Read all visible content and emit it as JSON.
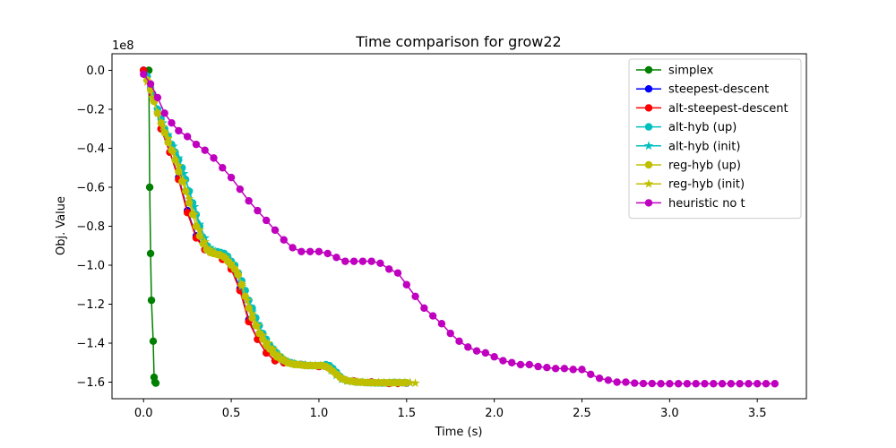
{
  "chart_data": {
    "type": "line",
    "title": "Time comparison for grow22",
    "xlabel": "Time (s)",
    "ylabel": "Obj. Value",
    "y_offset_label": "1e8",
    "y_scale": 100000000,
    "xlim": [
      -0.18,
      3.78
    ],
    "ylim": [
      -1.685,
      0.085
    ],
    "x_ticks": [
      0.0,
      0.5,
      1.0,
      1.5,
      2.0,
      2.5,
      3.0,
      3.5
    ],
    "x_tick_labels": [
      "0.0",
      "0.5",
      "1.0",
      "1.5",
      "2.0",
      "2.5",
      "3.0",
      "3.5"
    ],
    "y_ticks": [
      0.0,
      -0.2,
      -0.4,
      -0.6,
      -0.8,
      -1.0,
      -1.2,
      -1.4,
      -1.6
    ],
    "y_tick_labels": [
      "0.0",
      "−0.2",
      "−0.4",
      "−0.6",
      "−0.8",
      "−1.0",
      "−1.2",
      "−1.4",
      "−1.6"
    ],
    "legend_position": "top-right",
    "series": [
      {
        "name": "simplex",
        "color": "#008000",
        "marker": "circle",
        "x": [
          0.0,
          0.03,
          0.035,
          0.04,
          0.045,
          0.055,
          0.06,
          0.065,
          0.07
        ],
        "y": [
          0.0,
          0.0,
          -0.6,
          -0.94,
          -1.18,
          -1.39,
          -1.575,
          -1.6,
          -1.605
        ]
      },
      {
        "name": "steepest-descent",
        "color": "#0000ff",
        "marker": "circle",
        "x": [
          0.0,
          0.05,
          0.1,
          0.15,
          0.2,
          0.25,
          0.3,
          0.35,
          0.4,
          0.45,
          0.5,
          0.55,
          0.6,
          0.65,
          0.7,
          0.75,
          0.8,
          0.9,
          1.0,
          1.1,
          1.2,
          1.3,
          1.4,
          1.5
        ],
        "y": [
          0.0,
          -0.12,
          -0.3,
          -0.42,
          -0.55,
          -0.72,
          -0.85,
          -0.92,
          -0.93,
          -0.96,
          -1.01,
          -1.12,
          -1.28,
          -1.38,
          -1.45,
          -1.49,
          -1.5,
          -1.51,
          -1.515,
          -1.55,
          -1.595,
          -1.6,
          -1.605,
          -1.605
        ]
      },
      {
        "name": "alt-steepest-descent",
        "color": "#ff0000",
        "marker": "circle",
        "x": [
          0.0,
          0.05,
          0.1,
          0.15,
          0.2,
          0.25,
          0.3,
          0.35,
          0.4,
          0.45,
          0.5,
          0.55,
          0.6,
          0.65,
          0.7,
          0.75,
          0.8,
          0.9,
          1.0,
          1.1,
          1.2,
          1.3,
          1.4,
          1.45
        ],
        "y": [
          0.0,
          -0.12,
          -0.3,
          -0.42,
          -0.56,
          -0.73,
          -0.86,
          -0.92,
          -0.94,
          -0.97,
          -1.02,
          -1.13,
          -1.29,
          -1.38,
          -1.45,
          -1.49,
          -1.5,
          -1.51,
          -1.52,
          -1.56,
          -1.595,
          -1.6,
          -1.607,
          -1.607
        ]
      },
      {
        "name": "alt-hyb (up)",
        "color": "#00bfbf",
        "marker": "circle",
        "x": [
          0.02,
          0.04,
          0.06,
          0.08,
          0.1,
          0.12,
          0.14,
          0.16,
          0.18,
          0.2,
          0.22,
          0.24,
          0.26,
          0.28,
          0.3,
          0.32,
          0.34,
          0.36,
          0.38,
          0.4,
          0.42,
          0.44,
          0.46,
          0.48,
          0.5,
          0.52,
          0.54,
          0.56,
          0.58,
          0.6,
          0.62,
          0.64,
          0.66,
          0.68,
          0.7,
          0.72,
          0.74,
          0.76,
          0.78,
          0.8,
          0.82,
          0.84,
          0.86,
          0.88,
          0.9,
          0.92,
          0.94,
          0.96,
          0.98,
          1.0,
          1.02,
          1.04,
          1.06,
          1.08,
          1.1,
          1.12,
          1.14,
          1.16,
          1.18,
          1.2,
          1.22,
          1.24,
          1.26,
          1.28,
          1.3,
          1.32,
          1.34,
          1.36,
          1.38,
          1.4,
          1.42,
          1.44,
          1.46,
          1.48,
          1.5
        ],
        "y": [
          -0.03,
          -0.09,
          -0.15,
          -0.2,
          -0.25,
          -0.3,
          -0.34,
          -0.38,
          -0.42,
          -0.46,
          -0.5,
          -0.56,
          -0.62,
          -0.68,
          -0.74,
          -0.8,
          -0.86,
          -0.9,
          -0.92,
          -0.93,
          -0.93,
          -0.935,
          -0.94,
          -0.955,
          -0.98,
          -1.0,
          -1.04,
          -1.08,
          -1.13,
          -1.18,
          -1.22,
          -1.27,
          -1.31,
          -1.35,
          -1.38,
          -1.41,
          -1.43,
          -1.45,
          -1.47,
          -1.485,
          -1.495,
          -1.5,
          -1.505,
          -1.51,
          -1.51,
          -1.512,
          -1.515,
          -1.515,
          -1.515,
          -1.515,
          -1.515,
          -1.51,
          -1.515,
          -1.53,
          -1.55,
          -1.57,
          -1.585,
          -1.592,
          -1.595,
          -1.598,
          -1.6,
          -1.6,
          -1.602,
          -1.603,
          -1.603,
          -1.604,
          -1.604,
          -1.605,
          -1.604,
          -1.603,
          -1.602,
          -1.602,
          -1.603,
          -1.603,
          -1.603
        ]
      },
      {
        "name": "alt-hyb (init)",
        "color": "#00bfbf",
        "marker": "star",
        "x": [
          0.02,
          0.05,
          0.08,
          0.11,
          0.14,
          0.17,
          0.2,
          0.23,
          0.26,
          0.29,
          0.32,
          0.35,
          0.38,
          0.41,
          0.44,
          0.47,
          0.5,
          0.53,
          0.56,
          0.59,
          0.62,
          0.65,
          0.68,
          0.71,
          0.74,
          0.77,
          0.8,
          0.83,
          0.86,
          0.89,
          0.92,
          0.95,
          0.98,
          1.01,
          1.04,
          1.07,
          1.1,
          1.13,
          1.16,
          1.19,
          1.22,
          1.25,
          1.28,
          1.31,
          1.34,
          1.37,
          1.4,
          1.43,
          1.46,
          1.49,
          1.52
        ],
        "y": [
          -0.04,
          -0.12,
          -0.2,
          -0.27,
          -0.33,
          -0.39,
          -0.45,
          -0.53,
          -0.62,
          -0.7,
          -0.79,
          -0.86,
          -0.91,
          -0.93,
          -0.94,
          -0.96,
          -0.99,
          -1.04,
          -1.11,
          -1.18,
          -1.24,
          -1.3,
          -1.36,
          -1.4,
          -1.44,
          -1.47,
          -1.49,
          -1.5,
          -1.505,
          -1.51,
          -1.512,
          -1.515,
          -1.515,
          -1.515,
          -1.52,
          -1.54,
          -1.565,
          -1.585,
          -1.593,
          -1.597,
          -1.6,
          -1.601,
          -1.603,
          -1.604,
          -1.604,
          -1.604,
          -1.603,
          -1.603,
          -1.603,
          -1.603,
          -1.603
        ]
      },
      {
        "name": "reg-hyb (up)",
        "color": "#bfbf00",
        "marker": "circle",
        "x": [
          0.02,
          0.04,
          0.06,
          0.08,
          0.1,
          0.12,
          0.14,
          0.16,
          0.18,
          0.2,
          0.22,
          0.24,
          0.26,
          0.28,
          0.3,
          0.32,
          0.34,
          0.36,
          0.38,
          0.4,
          0.42,
          0.44,
          0.46,
          0.48,
          0.5,
          0.52,
          0.54,
          0.56,
          0.58,
          0.6,
          0.62,
          0.64,
          0.66,
          0.68,
          0.7,
          0.72,
          0.74,
          0.76,
          0.78,
          0.8,
          0.82,
          0.84,
          0.86,
          0.88,
          0.9,
          0.92,
          0.94,
          0.96,
          0.98,
          1.0,
          1.02,
          1.04,
          1.06,
          1.08,
          1.1,
          1.12,
          1.14,
          1.16,
          1.18,
          1.2,
          1.22,
          1.24,
          1.26,
          1.28,
          1.3,
          1.32,
          1.34,
          1.36,
          1.38,
          1.4,
          1.42,
          1.44,
          1.46,
          1.48,
          1.5
        ],
        "y": [
          -0.05,
          -0.1,
          -0.16,
          -0.22,
          -0.27,
          -0.32,
          -0.37,
          -0.41,
          -0.46,
          -0.52,
          -0.57,
          -0.62,
          -0.68,
          -0.74,
          -0.8,
          -0.85,
          -0.89,
          -0.92,
          -0.935,
          -0.94,
          -0.945,
          -0.95,
          -0.96,
          -0.98,
          -1.0,
          -1.02,
          -1.05,
          -1.1,
          -1.16,
          -1.22,
          -1.27,
          -1.31,
          -1.35,
          -1.38,
          -1.41,
          -1.43,
          -1.45,
          -1.47,
          -1.48,
          -1.49,
          -1.5,
          -1.505,
          -1.51,
          -1.51,
          -1.512,
          -1.515,
          -1.515,
          -1.515,
          -1.515,
          -1.515,
          -1.515,
          -1.52,
          -1.53,
          -1.545,
          -1.56,
          -1.575,
          -1.585,
          -1.592,
          -1.595,
          -1.598,
          -1.6,
          -1.6,
          -1.602,
          -1.602,
          -1.603,
          -1.603,
          -1.603,
          -1.603,
          -1.603,
          -1.603,
          -1.603,
          -1.603,
          -1.603,
          -1.603,
          -1.603
        ]
      },
      {
        "name": "reg-hyb (init)",
        "color": "#bfbf00",
        "marker": "star",
        "x": [
          0.02,
          0.05,
          0.08,
          0.11,
          0.14,
          0.17,
          0.2,
          0.23,
          0.26,
          0.29,
          0.32,
          0.35,
          0.38,
          0.41,
          0.44,
          0.47,
          0.5,
          0.53,
          0.56,
          0.59,
          0.62,
          0.65,
          0.68,
          0.71,
          0.74,
          0.77,
          0.8,
          0.83,
          0.86,
          0.89,
          0.92,
          0.95,
          0.98,
          1.01,
          1.04,
          1.07,
          1.1,
          1.13,
          1.16,
          1.19,
          1.22,
          1.25,
          1.28,
          1.31,
          1.34,
          1.37,
          1.4,
          1.43,
          1.46,
          1.49,
          1.52,
          1.55
        ],
        "y": [
          -0.06,
          -0.14,
          -0.22,
          -0.29,
          -0.35,
          -0.42,
          -0.49,
          -0.57,
          -0.66,
          -0.74,
          -0.82,
          -0.88,
          -0.92,
          -0.935,
          -0.945,
          -0.96,
          -0.99,
          -1.03,
          -1.1,
          -1.18,
          -1.25,
          -1.31,
          -1.36,
          -1.4,
          -1.43,
          -1.46,
          -1.48,
          -1.5,
          -1.505,
          -1.51,
          -1.512,
          -1.515,
          -1.515,
          -1.515,
          -1.52,
          -1.535,
          -1.56,
          -1.58,
          -1.59,
          -1.595,
          -1.598,
          -1.6,
          -1.602,
          -1.603,
          -1.603,
          -1.603,
          -1.603,
          -1.603,
          -1.603,
          -1.603,
          -1.603,
          -1.605
        ]
      },
      {
        "name": "heuristic no t",
        "color": "#bf00bf",
        "marker": "circle",
        "x": [
          0.0,
          0.04,
          0.08,
          0.12,
          0.16,
          0.2,
          0.25,
          0.3,
          0.35,
          0.4,
          0.45,
          0.5,
          0.55,
          0.6,
          0.65,
          0.7,
          0.75,
          0.8,
          0.85,
          0.9,
          0.95,
          1.0,
          1.05,
          1.1,
          1.15,
          1.2,
          1.25,
          1.3,
          1.35,
          1.4,
          1.45,
          1.5,
          1.55,
          1.6,
          1.65,
          1.7,
          1.75,
          1.8,
          1.85,
          1.9,
          1.95,
          2.0,
          2.05,
          2.1,
          2.15,
          2.2,
          2.25,
          2.3,
          2.35,
          2.4,
          2.45,
          2.5,
          2.55,
          2.6,
          2.65,
          2.7,
          2.75,
          2.8,
          2.85,
          2.9,
          2.95,
          3.0,
          3.05,
          3.1,
          3.15,
          3.2,
          3.25,
          3.3,
          3.35,
          3.4,
          3.45,
          3.5,
          3.55,
          3.6
        ],
        "y": [
          -0.02,
          -0.07,
          -0.14,
          -0.22,
          -0.27,
          -0.31,
          -0.34,
          -0.38,
          -0.41,
          -0.45,
          -0.5,
          -0.55,
          -0.61,
          -0.67,
          -0.72,
          -0.77,
          -0.82,
          -0.87,
          -0.91,
          -0.93,
          -0.93,
          -0.93,
          -0.94,
          -0.96,
          -0.98,
          -0.98,
          -0.98,
          -0.98,
          -0.99,
          -1.02,
          -1.04,
          -1.1,
          -1.16,
          -1.22,
          -1.26,
          -1.3,
          -1.35,
          -1.39,
          -1.42,
          -1.44,
          -1.45,
          -1.47,
          -1.49,
          -1.5,
          -1.51,
          -1.51,
          -1.52,
          -1.525,
          -1.53,
          -1.53,
          -1.535,
          -1.535,
          -1.56,
          -1.58,
          -1.59,
          -1.6,
          -1.6,
          -1.605,
          -1.607,
          -1.607,
          -1.608,
          -1.608,
          -1.608,
          -1.608,
          -1.608,
          -1.608,
          -1.608,
          -1.608,
          -1.608,
          -1.608,
          -1.608,
          -1.608,
          -1.608,
          -1.608
        ]
      }
    ]
  }
}
